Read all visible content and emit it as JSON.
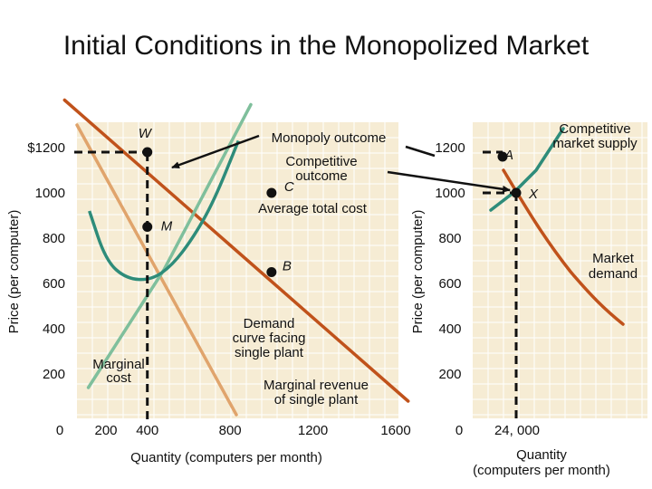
{
  "title": "Initial Conditions in the Monopolized Market",
  "colors": {
    "panel_bg": "#f6ecd4",
    "grid": "#ffffff",
    "demand": "#c0521b",
    "marginal_revenue": "#e0a46c",
    "marginal_cost": "#7fbf9c",
    "average_total_cost": "#2e8c7a",
    "market_supply": "#2e8c7a",
    "market_demand": "#c0521b"
  },
  "chart_data": [
    {
      "type": "line",
      "panel": "left",
      "xlabel": "Quantity (computers per month)",
      "ylabel": "Price (per computer)",
      "x_ticks": [
        "200",
        "400",
        "800",
        "1200",
        "1600"
      ],
      "x_origin_label": "0",
      "y_ticks": [
        "200",
        "400",
        "600",
        "800",
        "1000",
        "$1200"
      ],
      "xlim": [
        0,
        1700
      ],
      "ylim": [
        0,
        1300
      ],
      "grid": true,
      "series": [
        {
          "name": "Demand curve facing single plant",
          "key": "demand",
          "x": [
            0,
            1660
          ],
          "y": [
            1410,
            80
          ]
        },
        {
          "name": "Marginal revenue of single plant",
          "key": "marginal_revenue",
          "x": [
            60,
            830
          ],
          "y": [
            1300,
            20
          ]
        },
        {
          "name": "Marginal cost",
          "key": "marginal_cost",
          "x": [
            115,
            480,
            900
          ],
          "y": [
            140,
            660,
            1390
          ]
        },
        {
          "name": "Average total cost",
          "key": "average_total_cost",
          "x": [
            120,
            200,
            300,
            420,
            520,
            620,
            720,
            840
          ],
          "y": [
            920,
            700,
            620,
            615,
            680,
            800,
            960,
            1230
          ]
        }
      ],
      "points": [
        {
          "label": "W",
          "x": 400,
          "y": 1180
        },
        {
          "label": "C",
          "x": 1000,
          "y": 1000
        },
        {
          "label": "M",
          "x": 400,
          "y": 850
        },
        {
          "label": "B",
          "x": 1000,
          "y": 650
        }
      ],
      "guides": [
        {
          "from": [
            0,
            1180
          ],
          "to": [
            400,
            1180
          ]
        },
        {
          "from": [
            400,
            0
          ],
          "to": [
            400,
            1180
          ]
        }
      ],
      "annotations": {
        "monopoly_outcome": "Monopoly outcome",
        "competitive_outcome": "Competitive\noutcome",
        "average_total_cost": "Average total cost",
        "demand_curve": "Demand\ncurve facing\nsingle plant",
        "marginal_revenue": "Marginal revenue\nof single plant",
        "marginal_cost": "Marginal\ncost"
      }
    },
    {
      "type": "line",
      "panel": "right",
      "xlabel": "Quantity\n(computers per month)",
      "ylabel": "Price (per computer)",
      "x_ticks": [
        "24, 000"
      ],
      "x_origin_label": "0",
      "y_ticks": [
        "200",
        "400",
        "600",
        "800",
        "1000",
        "1200"
      ],
      "grid": true,
      "series": [
        {
          "name": "Competitive market supply",
          "key": "market_supply"
        },
        {
          "name": "Market demand",
          "key": "market_demand"
        }
      ],
      "points": [
        {
          "label": "A",
          "y": 1180
        },
        {
          "label": "X",
          "y": 1000
        }
      ],
      "annotations": {
        "market_supply": "Competitive\nmarket supply",
        "market_demand": "Market\ndemand"
      }
    }
  ]
}
